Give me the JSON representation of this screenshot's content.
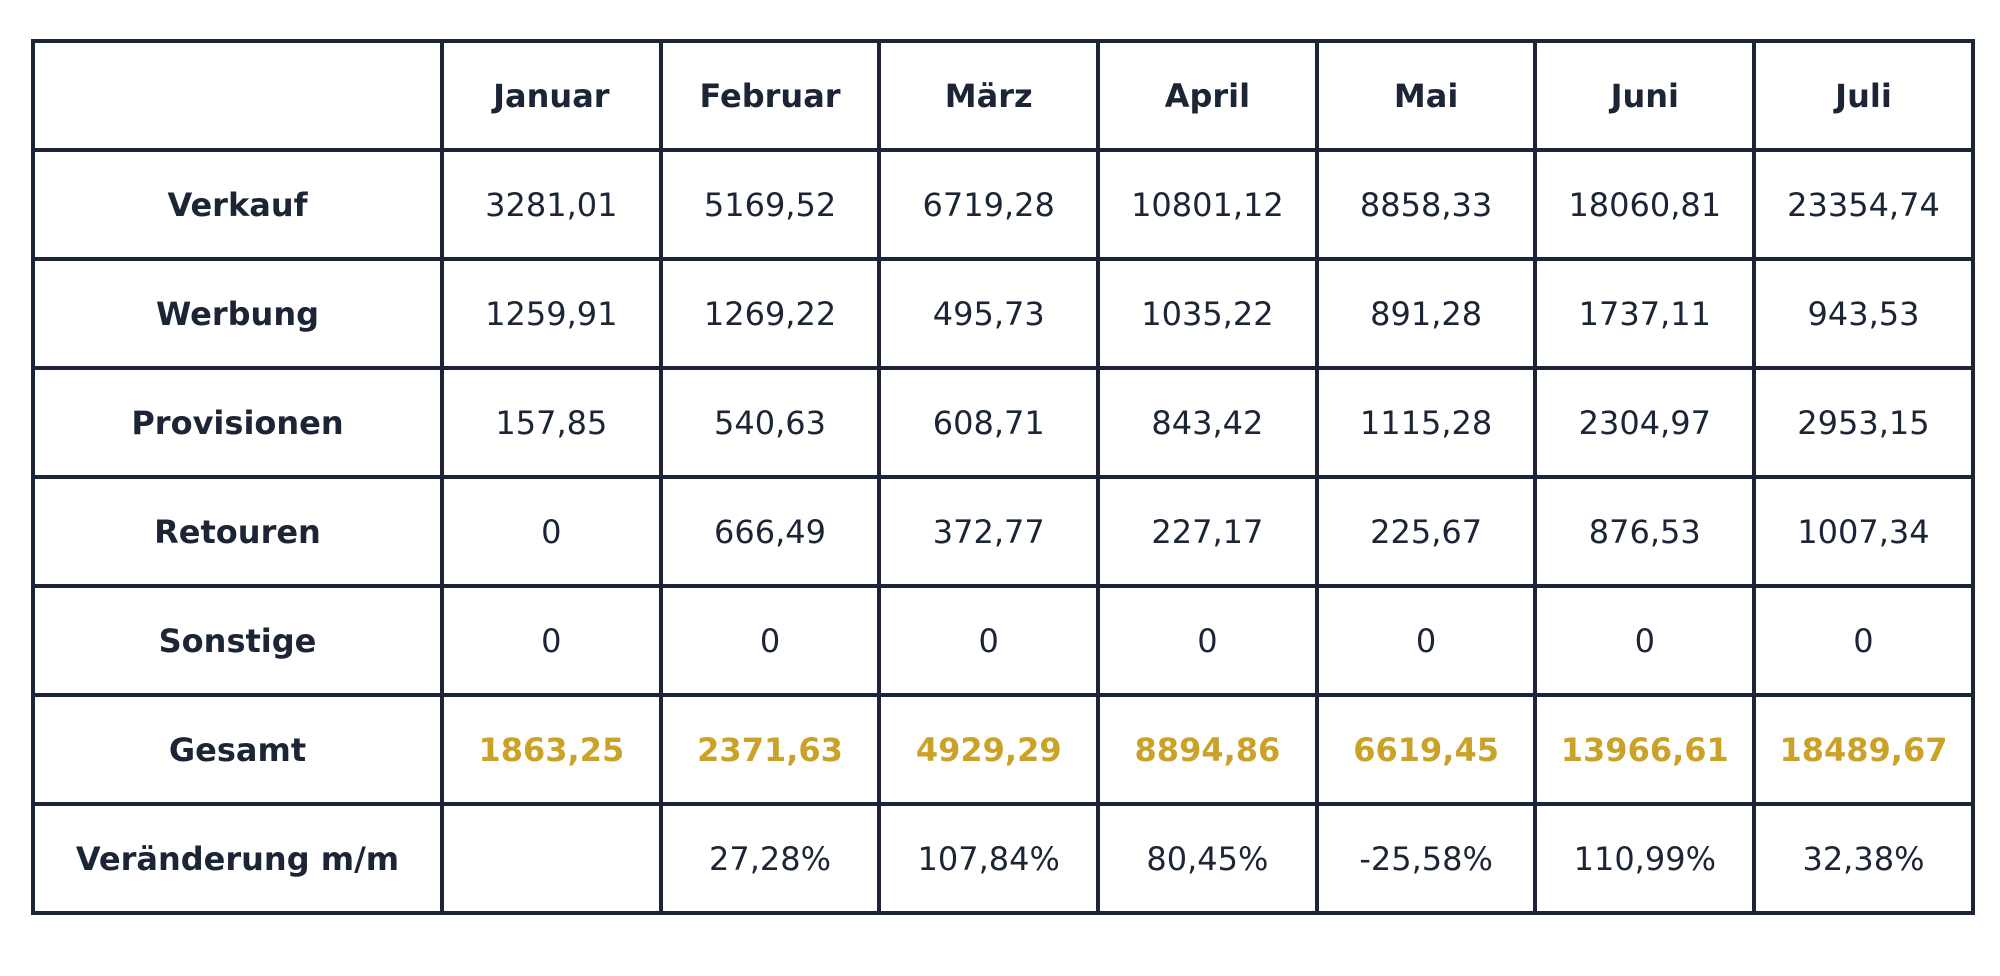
{
  "table": {
    "corner": "",
    "months": [
      "Januar",
      "Februar",
      "März",
      "April",
      "Mai",
      "Juni",
      "Juli"
    ],
    "rows": [
      {
        "label": "Verkauf",
        "values": [
          "3281,01",
          "5169,52",
          "6719,28",
          "10801,12",
          "8858,33",
          "18060,81",
          "23354,74"
        ]
      },
      {
        "label": "Werbung",
        "values": [
          "1259,91",
          "1269,22",
          "495,73",
          "1035,22",
          "891,28",
          "1737,11",
          "943,53"
        ]
      },
      {
        "label": "Provisionen",
        "values": [
          "157,85",
          "540,63",
          "608,71",
          "843,42",
          "1115,28",
          "2304,97",
          "2953,15"
        ]
      },
      {
        "label": "Retouren",
        "values": [
          "0",
          "666,49",
          "372,77",
          "227,17",
          "225,67",
          "876,53",
          "1007,34"
        ]
      },
      {
        "label": "Sonstige",
        "values": [
          "0",
          "0",
          "0",
          "0",
          "0",
          "0",
          "0"
        ]
      },
      {
        "label": "Gesamt",
        "values": [
          "1863,25",
          "2371,63",
          "4929,29",
          "8894,86",
          "6619,45",
          "13966,61",
          "18489,67"
        ]
      },
      {
        "label": "Veränderung m/m",
        "values": [
          "",
          "27,28%",
          "107,84%",
          "80,45%",
          "-25,58%",
          "110,99%",
          "32,38%"
        ]
      }
    ]
  },
  "colors": {
    "border": "#1b2535",
    "text": "#1b2535",
    "total_accent": "#c9a227"
  }
}
